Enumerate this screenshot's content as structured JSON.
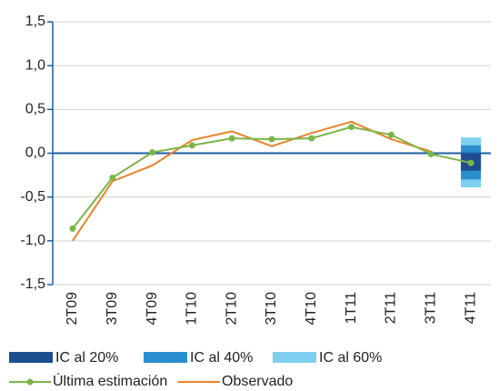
{
  "chart_data": {
    "type": "line",
    "categories": [
      "2T09",
      "3T09",
      "4T09",
      "1T10",
      "2T10",
      "3T10",
      "4T10",
      "1T11",
      "2T11",
      "3T11",
      "4T11"
    ],
    "series": [
      {
        "name": "Última estimación",
        "color": "#7ab648",
        "markers": true,
        "values": [
          -0.86,
          -0.28,
          0.01,
          0.09,
          0.17,
          0.16,
          0.17,
          0.3,
          0.21,
          -0.01,
          -0.11
        ]
      },
      {
        "name": "Observado",
        "color": "#e8832a",
        "markers": false,
        "values": [
          -1.0,
          -0.32,
          -0.14,
          0.15,
          0.25,
          0.08,
          0.23,
          0.36,
          0.16,
          0.02,
          null
        ]
      }
    ],
    "intervals": [
      {
        "name": "IC al 60%",
        "color": "#7fd0f0",
        "category": "4T11",
        "low": -0.39,
        "high": 0.18
      },
      {
        "name": "IC al 40%",
        "color": "#2b8fcf",
        "category": "4T11",
        "low": -0.3,
        "high": 0.09
      },
      {
        "name": "IC al 20%",
        "color": "#1d4e8f",
        "category": "4T11",
        "low": -0.2,
        "high": -0.01
      }
    ],
    "ylim": [
      -1.5,
      1.5
    ],
    "yticks": [
      {
        "value": -1.5,
        "label": "-1,5"
      },
      {
        "value": -1.0,
        "label": "-1,0"
      },
      {
        "value": -0.5,
        "label": "-0,5"
      },
      {
        "value": 0,
        "label": "0,0"
      },
      {
        "value": 0.5,
        "label": "0,5"
      },
      {
        "value": 1.0,
        "label": "1,0"
      },
      {
        "value": 1.5,
        "label": "1,5"
      }
    ],
    "grid": true
  }
}
